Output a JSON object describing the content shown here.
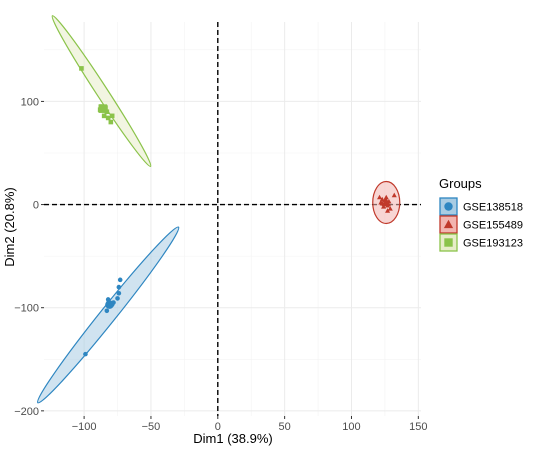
{
  "chart_data": {
    "type": "scatter",
    "title": "",
    "xlabel": "Dim1 (38.9%)",
    "ylabel": "Dim2 (20.8%)",
    "xlim": [
      -130,
      152
    ],
    "ylim": [
      -205,
      177
    ],
    "x_ticks": [
      -100,
      -50,
      0,
      50,
      100,
      150
    ],
    "y_ticks": [
      -200,
      -100,
      0,
      100
    ],
    "x_tick_labels": [
      "−100",
      "−50",
      "0",
      "50",
      "100",
      "150"
    ],
    "y_tick_labels": [
      "−200",
      "−100",
      "0",
      "100"
    ],
    "grid": true,
    "reference_lines": [
      {
        "axis": "x",
        "value": 0,
        "style": "dashed"
      },
      {
        "axis": "y",
        "value": 0,
        "style": "dashed"
      }
    ],
    "legend": {
      "title": "Groups",
      "placement": "right"
    },
    "series": [
      {
        "name": "GSE138518",
        "marker": "circle",
        "color": "#2e86c1",
        "fill": "#a9cce3",
        "points": [
          [
            -99,
            -145
          ],
          [
            -83,
            -103
          ],
          [
            -82,
            -92
          ],
          [
            -80,
            -96
          ],
          [
            -80,
            -98
          ],
          [
            -79,
            -97
          ],
          [
            -78,
            -95
          ],
          [
            -75,
            -91
          ],
          [
            -74,
            -86
          ],
          [
            -74,
            -80
          ],
          [
            -73,
            -73
          ]
        ],
        "centroid": [
          -81,
          -97
        ],
        "ellipse": {
          "center": [
            -82,
            -107
          ],
          "rx": 112.5,
          "ry": 7.8,
          "angle": -51.3
        }
      },
      {
        "name": "GSE155489",
        "marker": "triangle",
        "color": "#c0392b",
        "fill": "#f2b5b0",
        "points": [
          [
            121,
            7
          ],
          [
            122,
            2
          ],
          [
            123,
            5
          ],
          [
            123,
            1
          ],
          [
            124,
            -2
          ],
          [
            125,
            4
          ],
          [
            126,
            7
          ],
          [
            127,
            -1
          ],
          [
            127,
            -6
          ],
          [
            128,
            3
          ],
          [
            129,
            -4
          ],
          [
            132,
            9
          ]
        ],
        "centroid": [
          126,
          2
        ],
        "ellipse": {
          "center": [
            126,
            2
          ],
          "rx": 13.5,
          "ry": 21.0,
          "angle": 0
        }
      },
      {
        "name": "GSE193123",
        "marker": "square",
        "color": "#8bc34a",
        "fill": "#e7edc8",
        "points": [
          [
            -102,
            132
          ],
          [
            -88,
            92
          ],
          [
            -87,
            95
          ],
          [
            -85,
            86
          ],
          [
            -84,
            94
          ],
          [
            -83,
            90
          ],
          [
            -82,
            84
          ],
          [
            -80,
            80
          ],
          [
            -79,
            86
          ]
        ],
        "centroid": [
          -86,
          93
        ],
        "ellipse": {
          "center": [
            -87,
            110
          ],
          "rx": 89.9,
          "ry": 5.7,
          "angle": 56.9
        }
      }
    ]
  }
}
